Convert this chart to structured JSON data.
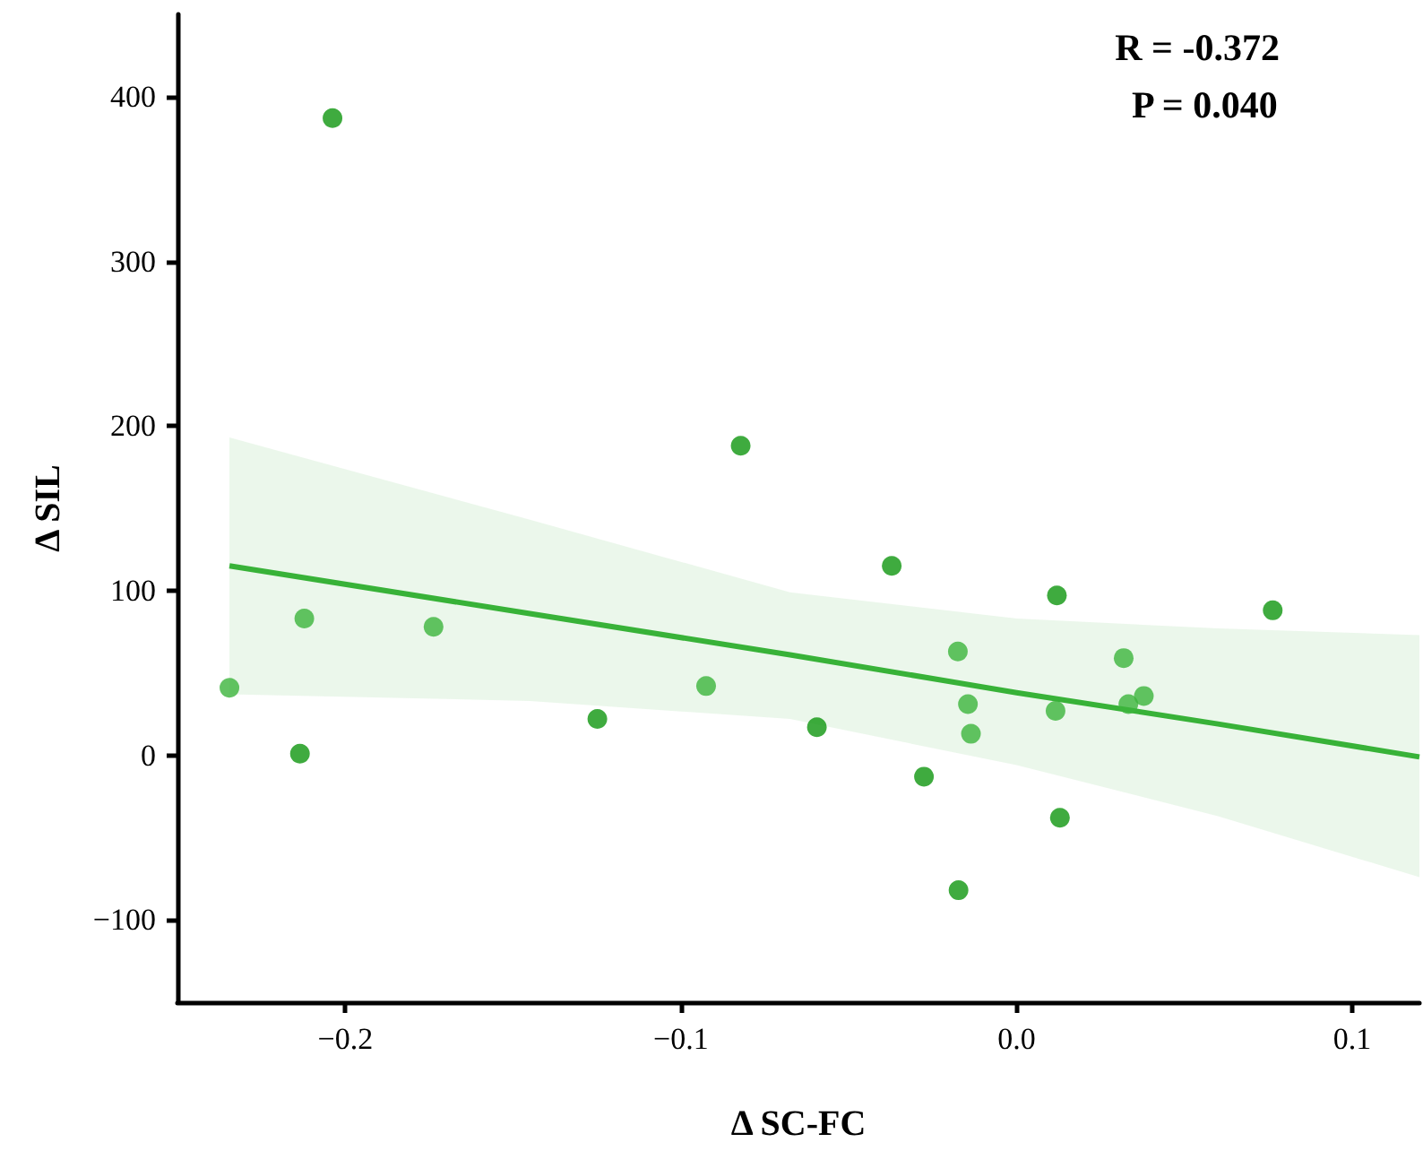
{
  "chart_data": {
    "type": "scatter",
    "xlabel": "Δ SC-FC",
    "ylabel": "Δ SIL",
    "annotations": [
      "R = -0.372",
      "P = 0.040"
    ],
    "xlim": [
      -0.25,
      0.12
    ],
    "ylim": [
      -150,
      450
    ],
    "xticks": [
      {
        "value": -0.2,
        "label": "−0.2"
      },
      {
        "value": -0.1,
        "label": "−0.1"
      },
      {
        "value": 0,
        "label": "0.0"
      },
      {
        "value": 0.1,
        "label": "0.1"
      }
    ],
    "yticks": [
      {
        "value": -100,
        "label": "−100"
      },
      0,
      100,
      200,
      300,
      400
    ],
    "marker": "circle",
    "grid": false,
    "series": [
      {
        "color": "#0f960f",
        "x": [
          -0.2038,
          -0.0822,
          -0.2135,
          -0.1249,
          -0.0372,
          0.012,
          0.0763,
          -0.0595,
          -0.0276,
          0.0129,
          -0.0173
        ],
        "values": [
          387,
          188,
          1,
          22,
          115,
          97,
          88,
          17,
          -13,
          -38,
          -82
        ]
      },
      {
        "color": "#3cb43c",
        "x": [
          -0.2122,
          -0.1737,
          -0.2345,
          -0.0925,
          -0.0175,
          0.0319,
          -0.0145,
          -0.0136,
          0.0116,
          0.0333,
          0.0379
        ],
        "values": [
          83,
          78,
          41,
          42,
          63,
          59,
          31,
          13,
          27,
          31,
          36
        ]
      },
      {
        "type": "line",
        "marker": "none",
        "color": "#38b238",
        "x": [
          -0.2345,
          -0.145,
          -0.0675,
          0,
          0.06,
          0.12
        ],
        "values": [
          115,
          86,
          61,
          38,
          19,
          -1
        ],
        "lower": [
          37,
          33,
          22,
          -6,
          -37,
          -74
        ],
        "upper": [
          193,
          143,
          99,
          83,
          77,
          73
        ]
      }
    ]
  }
}
